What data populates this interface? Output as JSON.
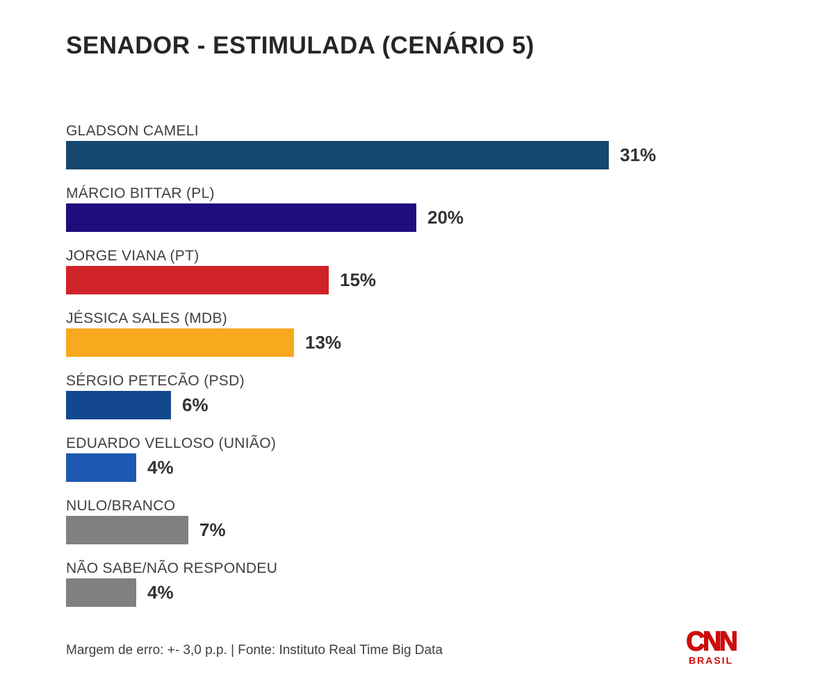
{
  "page": {
    "title": "SENADOR - ESTIMULADA (CENÁRIO 5)",
    "footer_note": "Margem de erro: +- 3,0 p.p. | Fonte: Instituto Real Time Big Data",
    "logo": {
      "brand": "CNN",
      "sub_brand": "BRASIL",
      "color": "#cc0b0b"
    }
  },
  "chart_data": {
    "type": "bar",
    "orientation": "horizontal",
    "title": "SENADOR - ESTIMULADA (CENÁRIO 5)",
    "categories": [
      "GLADSON CAMELI",
      "MÁRCIO BITTAR (PL)",
      "JORGE VIANA (PT)",
      "JÉSSICA SALES (MDB)",
      "SÉRGIO PETECÃO (PSD)",
      "EDUARDO VELLOSO (UNIÃO)",
      "NULO/BRANCO",
      "NÃO SABE/NÃO RESPONDEU"
    ],
    "values": [
      31,
      20,
      15,
      13,
      6,
      4,
      7,
      4
    ],
    "value_labels": [
      "31%",
      "20%",
      "15%",
      "13%",
      "6%",
      "4%",
      "7%",
      "4%"
    ],
    "bar_colors": [
      "#15476f",
      "#1e0d7d",
      "#d02229",
      "#f9a91e",
      "#14488e",
      "#1d59b2",
      "#808080",
      "#808080"
    ],
    "unit": "%",
    "xlim": [
      0,
      40
    ],
    "grid": false,
    "legend": false,
    "value_label_position": "end-of-bar",
    "source": "Margem de erro: +- 3,0 p.p. | Fonte: Instituto Real Time Big Data"
  }
}
